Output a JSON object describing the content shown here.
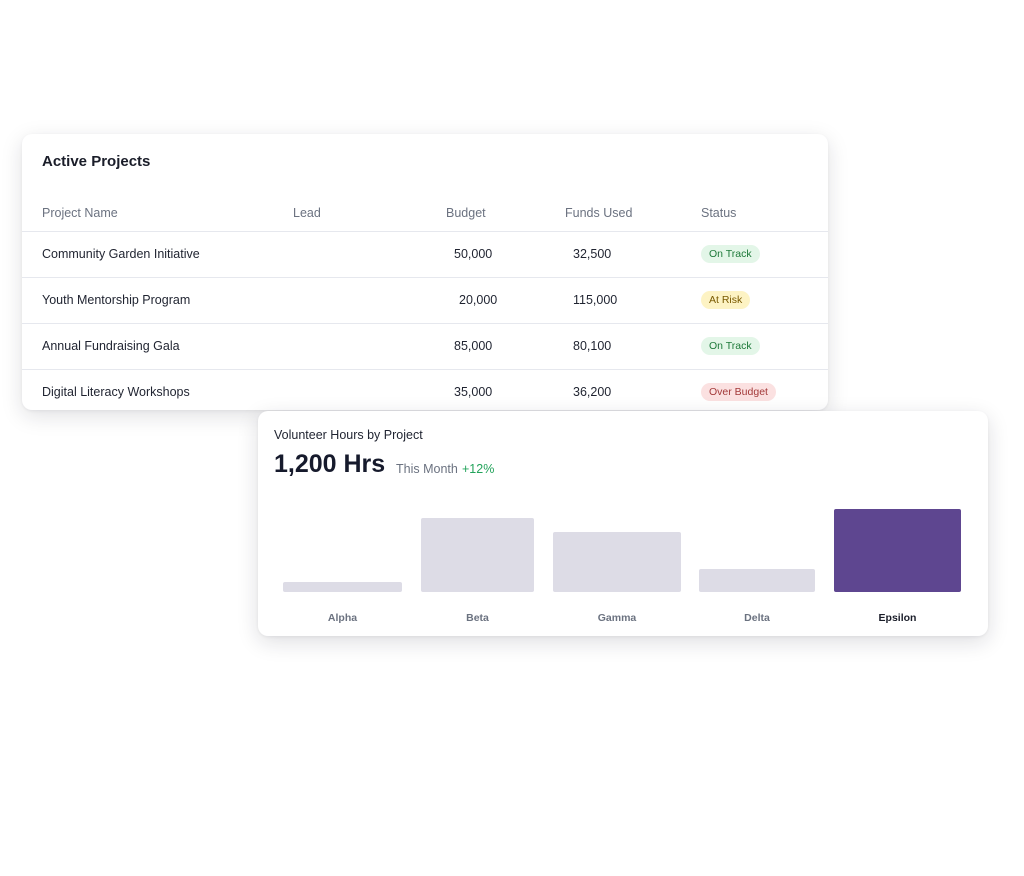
{
  "projects": {
    "title": "Active Projects",
    "columns": [
      "Project Name",
      "Lead",
      "Budget",
      "Funds Used",
      "Status"
    ],
    "rows": [
      {
        "name": "Community Garden Initiative",
        "lead": "",
        "budget": "50,000",
        "funds_used": "32,500",
        "status": "On Track",
        "status_kind": "ok"
      },
      {
        "name": "Youth Mentorship Program",
        "lead": "",
        "budget": "20,000",
        "funds_used": "115,000",
        "status": "At Risk",
        "status_kind": "risk"
      },
      {
        "name": "Annual Fundraising Gala",
        "lead": "",
        "budget": "85,000",
        "funds_used": "80,100",
        "status": "On Track",
        "status_kind": "ok"
      },
      {
        "name": "Digital Literacy Workshops",
        "lead": "",
        "budget": "35,000",
        "funds_used": "36,200",
        "status": "Over Budget",
        "status_kind": "over"
      }
    ]
  },
  "hours": {
    "title": "Volunteer Hours by Project",
    "value": "1,200 Hrs",
    "period": "This Month",
    "delta": "+12%"
  },
  "chart_data": {
    "type": "bar",
    "categories": [
      "Alpha",
      "Beta",
      "Gamma",
      "Delta",
      "Epsilon"
    ],
    "values": [
      10,
      74,
      60,
      23,
      83
    ],
    "highlight": "Epsilon",
    "colors": {
      "bar": "#dddce6",
      "highlight": "#5e4690",
      "label": "#6b7280",
      "highlight_label": "#1a1d29"
    }
  }
}
